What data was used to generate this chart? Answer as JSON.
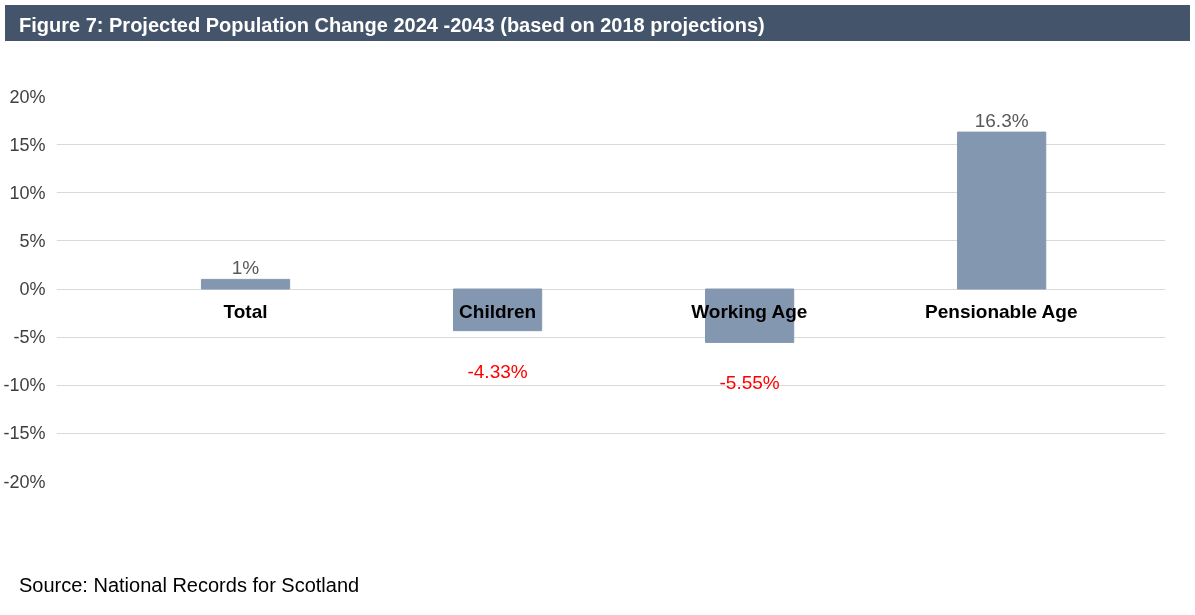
{
  "chart_data": {
    "type": "bar",
    "title": "Figure 7: Projected Population Change 2024 -2043 (based on 2018 projections)",
    "categories": [
      "Total",
      "Children",
      "Working Age",
      "Pensionable Age"
    ],
    "values": [
      1,
      -4.33,
      -5.55,
      16.3
    ],
    "value_labels": [
      "1%",
      "-4.33%",
      "-5.55%",
      "16.3%"
    ],
    "color": "#8497b0",
    "ylim": [
      -20,
      20
    ],
    "yticks": [
      {
        "value": -20,
        "label": "-20%"
      },
      {
        "value": -15,
        "label": "-15%"
      },
      {
        "value": -10,
        "label": "-10%"
      },
      {
        "value": -5,
        "label": "-5%"
      },
      {
        "value": 0,
        "label": "0%"
      },
      {
        "value": 5,
        "label": "5%"
      },
      {
        "value": 10,
        "label": "10%"
      },
      {
        "value": 15,
        "label": "15%"
      },
      {
        "value": 20,
        "label": "20%"
      }
    ],
    "grid": "y",
    "annotations": [
      "Source: National Records for Scotland"
    ]
  }
}
